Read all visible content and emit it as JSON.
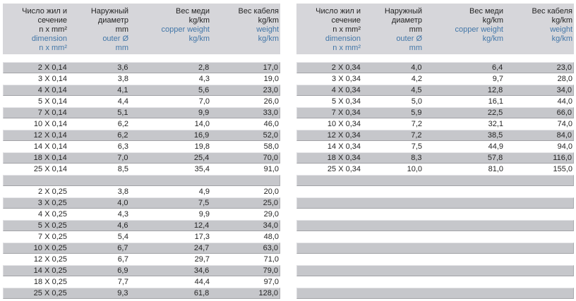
{
  "colors": {
    "page_background": "#ffffff",
    "header_background": "#d6d6da",
    "row_gray": "#c6c7cb",
    "row_bevel_light": "#e7e7ea",
    "row_bevel_dark": "#a2a3a7",
    "text": "#252525",
    "accent_blue": "#4377a8"
  },
  "column_headers": [
    {
      "ru": [
        "Число жил и",
        "сечение",
        "n x mm²"
      ],
      "en": [
        "dimension",
        "n x mm²"
      ]
    },
    {
      "ru": [
        "Наружный",
        "диаметр",
        "mm"
      ],
      "en": [
        "outer Ø",
        "mm"
      ]
    },
    {
      "ru": [
        "Вес меди",
        "kg/km"
      ],
      "en": [
        "copper weight",
        "kg/km"
      ]
    },
    {
      "ru": [
        "Вес кабеля",
        "kg/km"
      ],
      "en": [
        "weight",
        "kg/km"
      ]
    }
  ],
  "tables": [
    {
      "name": "cable-table-0-14-and-0-25",
      "rows": [
        [
          "2 X 0,14",
          "3,6",
          "2,8",
          "17,0"
        ],
        [
          "3 X 0,14",
          "3,8",
          "4,3",
          "19,0"
        ],
        [
          "4 X 0,14",
          "4,1",
          "5,6",
          "23,0"
        ],
        [
          "5 X 0,14",
          "4,4",
          "7,0",
          "26,0"
        ],
        [
          "7 X 0,14",
          "5,1",
          "9,9",
          "33,0"
        ],
        [
          "10 X 0,14",
          "6,2",
          "14,0",
          "46,0"
        ],
        [
          "12 X 0,14",
          "6,2",
          "16,9",
          "52,0"
        ],
        [
          "14 X 0,14",
          "6,3",
          "19,8",
          "58,0"
        ],
        [
          "18 X 0,14",
          "7,0",
          "25,4",
          "70,0"
        ],
        [
          "25 X 0,14",
          "8,5",
          "35,4",
          "91,0"
        ],
        [
          "",
          "",
          "",
          ""
        ],
        [
          "2 X 0,25",
          "3,8",
          "4,9",
          "20,0"
        ],
        [
          "3 X 0,25",
          "4,0",
          "7,5",
          "25,0"
        ],
        [
          "4 X 0,25",
          "4,3",
          "9,9",
          "29,0"
        ],
        [
          "5 X 0,25",
          "4,6",
          "12,4",
          "34,0"
        ],
        [
          "7 X 0,25",
          "5,4",
          "17,3",
          "48,0"
        ],
        [
          "10 X 0,25",
          "6,7",
          "24,7",
          "63,0"
        ],
        [
          "12 X 0,25",
          "6,7",
          "29,7",
          "71,0"
        ],
        [
          "14 X 0,25",
          "6,9",
          "34,6",
          "79,0"
        ],
        [
          "18 X 0,25",
          "7,7",
          "44,4",
          "97,0"
        ],
        [
          "25 X 0,25",
          "9,3",
          "61,8",
          "128,0"
        ]
      ]
    },
    {
      "name": "cable-table-0-34",
      "rows": [
        [
          "2 X 0,34",
          "4,0",
          "6,4",
          "23,0"
        ],
        [
          "3 X 0,34",
          "4,2",
          "9,7",
          "28,0"
        ],
        [
          "4 X 0,34",
          "4,5",
          "12,8",
          "34,0"
        ],
        [
          "5 X 0,34",
          "5,0",
          "16,1",
          "44,0"
        ],
        [
          "7 X 0,34",
          "5,9",
          "22,5",
          "66,0"
        ],
        [
          "10 X 0,34",
          "7,2",
          "32,1",
          "74,0"
        ],
        [
          "12 X 0,34",
          "7,2",
          "38,5",
          "84,0"
        ],
        [
          "14 X 0,34",
          "7,5",
          "44,9",
          "94,0"
        ],
        [
          "18 X 0,34",
          "8,3",
          "57,8",
          "116,0"
        ],
        [
          "25 X 0,34",
          "10,0",
          "81,0",
          "155,0"
        ],
        [
          "",
          "",
          "",
          ""
        ],
        [
          "",
          "",
          "",
          ""
        ],
        [
          "",
          "",
          "",
          ""
        ],
        [
          "",
          "",
          "",
          ""
        ],
        [
          "",
          "",
          "",
          ""
        ],
        [
          "",
          "",
          "",
          ""
        ],
        [
          "",
          "",
          "",
          ""
        ],
        [
          "",
          "",
          "",
          ""
        ],
        [
          "",
          "",
          "",
          ""
        ],
        [
          "",
          "",
          "",
          ""
        ],
        [
          "",
          "",
          "",
          ""
        ]
      ]
    }
  ]
}
